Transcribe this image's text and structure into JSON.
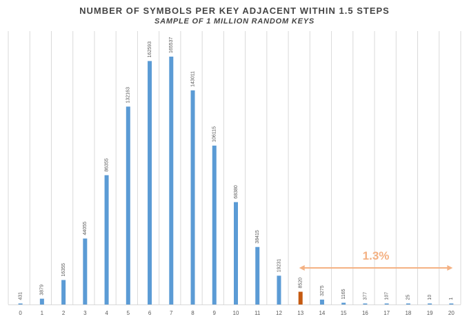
{
  "chart_data": {
    "type": "bar",
    "title": "NUMBER OF SYMBOLS PER KEY ADJACENT WITHIN 1.5 STEPS",
    "subtitle": "SAMPLE OF 1 MILLION RANDOM KEYS",
    "xlabel": "",
    "ylabel": "",
    "categories": [
      "0",
      "1",
      "2",
      "3",
      "4",
      "5",
      "6",
      "7",
      "8",
      "9",
      "10",
      "11",
      "12",
      "13",
      "14",
      "15",
      "16",
      "17",
      "18",
      "19",
      "20"
    ],
    "values": [
      431,
      3879,
      16355,
      44055,
      86355,
      132163,
      162593,
      165537,
      143011,
      106115,
      68380,
      38415,
      19231,
      8520,
      3275,
      1165,
      377,
      107,
      25,
      10,
      1
    ],
    "data_labels": [
      "431",
      "3879",
      "16355",
      "44055",
      "86355",
      "132163",
      "162593",
      "165537",
      "143011",
      "106115",
      "68380",
      "38415",
      "19231",
      "8520",
      "3275",
      "1165",
      "377",
      "107",
      "25",
      "10",
      "1"
    ],
    "highlight_index": 13,
    "ylim": [
      0,
      165537
    ],
    "grid": {
      "vertical": true,
      "horizontal": false
    },
    "legend": "none",
    "annotation": {
      "text": "1.3%",
      "from_category": "13",
      "to_category": "20"
    },
    "colors": {
      "bar": "#5b9bd5",
      "highlight": "#c55a11",
      "annotation": "#f4b183",
      "grid": "#d9d9d9",
      "text": "#595959"
    }
  }
}
